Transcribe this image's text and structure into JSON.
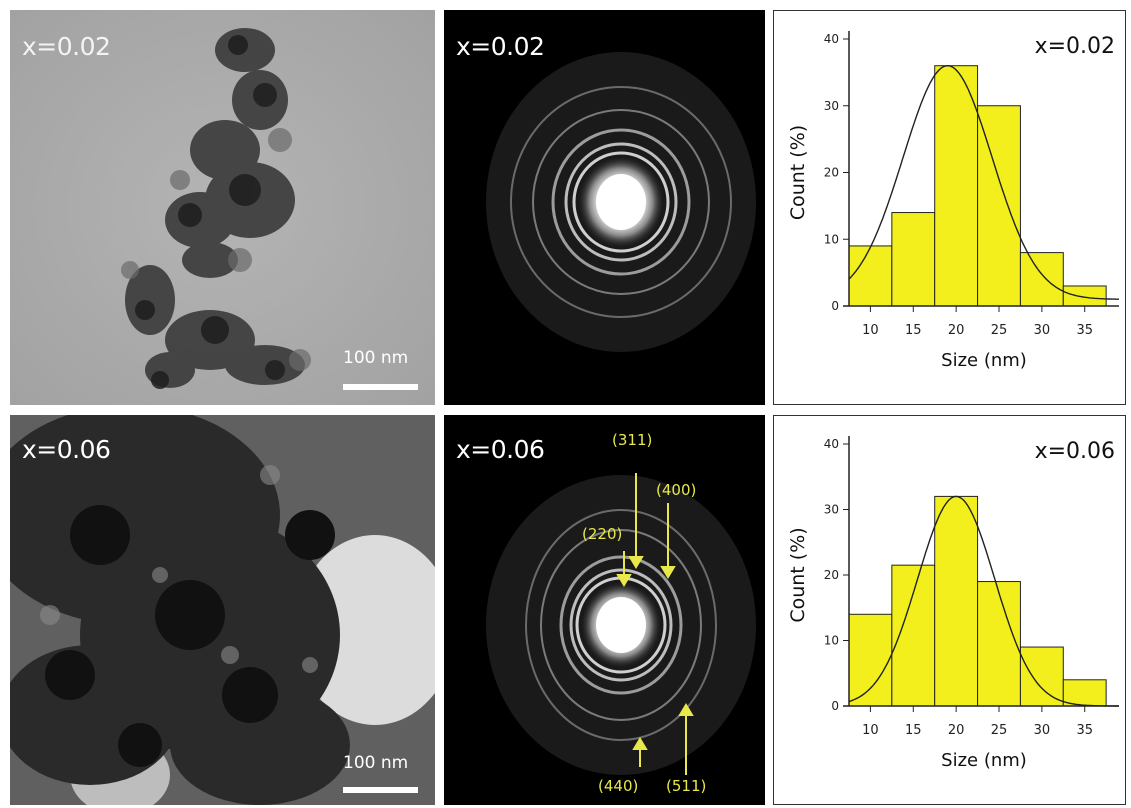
{
  "tem": [
    {
      "label": "x=0.02",
      "scale": "100 nm"
    },
    {
      "label": "x=0.06",
      "scale": "100 nm"
    }
  ],
  "saed": [
    {
      "label": "x=0.02"
    },
    {
      "label": "x=0.06",
      "planes": [
        "(311)",
        "(400)",
        "(220)",
        "(440)",
        "(511)"
      ]
    }
  ],
  "colors": {
    "bar": "#f2ef1d",
    "accent": "#e8e84a"
  },
  "chart_data": [
    {
      "type": "bar",
      "title": "x=0.02",
      "xlabel": "Size (nm)",
      "ylabel": "Count (%)",
      "x_ticks": [
        "10",
        "15",
        "20",
        "25",
        "30",
        "35"
      ],
      "y_ticks": [
        "0",
        "10",
        "20",
        "30",
        "40"
      ],
      "xlim": [
        7.5,
        39
      ],
      "ylim": [
        0,
        40
      ],
      "bin_edges": [
        7.5,
        12.5,
        17.5,
        22.5,
        27.5,
        32.5,
        37.5
      ],
      "values": [
        9,
        14,
        36,
        30,
        8,
        3
      ],
      "fit": {
        "mean": 19,
        "sigma": 5.2,
        "peak": 36,
        "baseline": 1
      }
    },
    {
      "type": "bar",
      "title": "x=0.06",
      "xlabel": "Size (nm)",
      "ylabel": "Count (%)",
      "x_ticks": [
        "10",
        "15",
        "20",
        "25",
        "30",
        "35"
      ],
      "y_ticks": [
        "0",
        "10",
        "20",
        "30",
        "40"
      ],
      "xlim": [
        7.5,
        39
      ],
      "ylim": [
        0,
        40
      ],
      "bin_edges": [
        7.5,
        12.5,
        17.5,
        22.5,
        27.5,
        32.5,
        37.5
      ],
      "values": [
        14,
        21.5,
        32,
        19,
        9,
        4
      ],
      "fit": {
        "mean": 20,
        "sigma": 4.5,
        "peak": 32,
        "baseline": 0
      }
    }
  ]
}
